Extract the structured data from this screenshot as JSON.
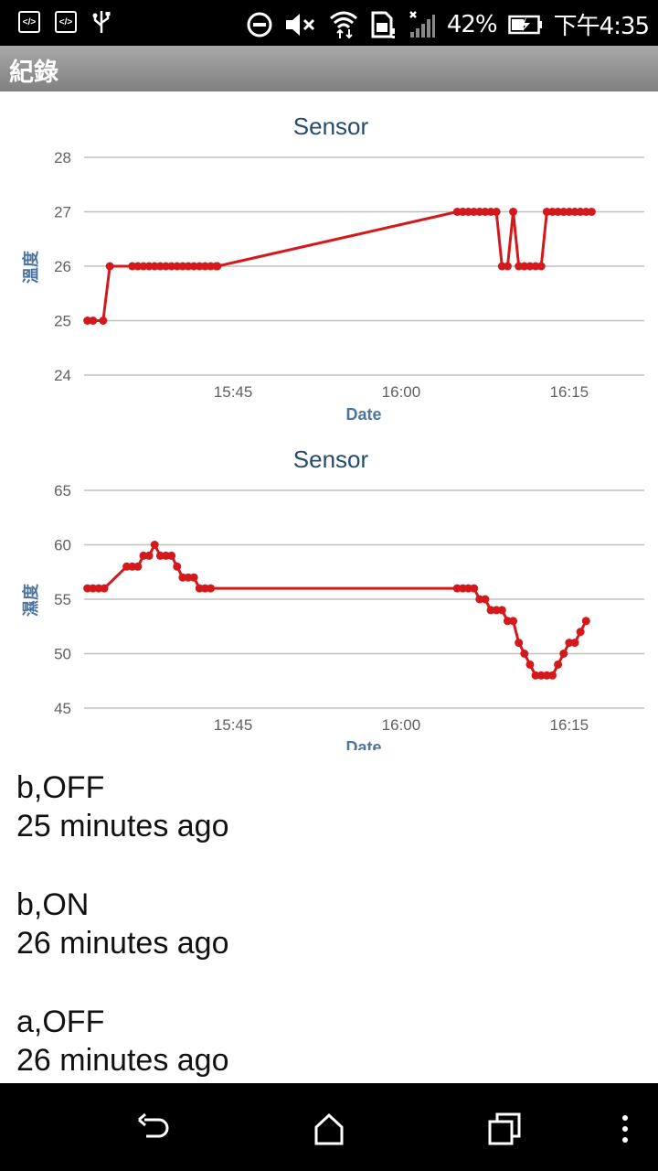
{
  "status_bar": {
    "battery_percent": "42%",
    "time": "下午4:35",
    "icons": [
      "debug-icon",
      "debug-icon",
      "usb-icon",
      "do-not-disturb-icon",
      "mute-icon",
      "wifi-icon",
      "sim-icon",
      "signal-icon",
      "battery-charging-icon"
    ]
  },
  "action_bar": {
    "title": "紀錄"
  },
  "charts": [
    {
      "title": "Sensor",
      "xlabel": "Date",
      "ylabel": "溫度",
      "x_ticks": [
        "15:45",
        "16:00",
        "16:15"
      ],
      "y_ticks": [
        "28",
        "27",
        "26",
        "25",
        "24"
      ]
    },
    {
      "title": "Sensor",
      "xlabel": "Date",
      "ylabel": "濕度",
      "x_ticks": [
        "15:45",
        "16:00",
        "16:15"
      ],
      "y_ticks": [
        "65",
        "60",
        "55",
        "50",
        "45"
      ]
    }
  ],
  "chart_data": [
    {
      "type": "line",
      "title": "Sensor",
      "xlabel": "Date",
      "ylabel": "溫度",
      "ylim": [
        24,
        28
      ],
      "x_unit": "minutes after 15:45",
      "series": [
        {
          "color": "#d3191c",
          "points": [
            [
              -13,
              25
            ],
            [
              -12.5,
              25
            ],
            [
              -11.6,
              25
            ],
            [
              -11,
              26
            ],
            [
              -9,
              26
            ],
            [
              -8.5,
              26
            ],
            [
              -8,
              26
            ],
            [
              -7.5,
              26
            ],
            [
              -7,
              26
            ],
            [
              -6.5,
              26
            ],
            [
              -6,
              26
            ],
            [
              -5.5,
              26
            ],
            [
              -5,
              26
            ],
            [
              -4.5,
              26
            ],
            [
              -4,
              26
            ],
            [
              -3.5,
              26
            ],
            [
              -3,
              26
            ],
            [
              -2.5,
              26
            ],
            [
              -2,
              26
            ],
            [
              -1.5,
              26
            ],
            [
              -1.4,
              26
            ],
            [
              20,
              27
            ],
            [
              20.5,
              27
            ],
            [
              21,
              27
            ],
            [
              21.5,
              27
            ],
            [
              22,
              27
            ],
            [
              22.5,
              27
            ],
            [
              23,
              27
            ],
            [
              23.5,
              27
            ],
            [
              24,
              26
            ],
            [
              24.5,
              26
            ],
            [
              25,
              27
            ],
            [
              25.5,
              26
            ],
            [
              26,
              26
            ],
            [
              26.5,
              26
            ],
            [
              27,
              26
            ],
            [
              27.5,
              26
            ],
            [
              28,
              27
            ],
            [
              28.5,
              27
            ],
            [
              29,
              27
            ],
            [
              29.5,
              27
            ],
            [
              30,
              27
            ],
            [
              30.5,
              27
            ],
            [
              31,
              27
            ],
            [
              31.5,
              27
            ],
            [
              32,
              27
            ]
          ]
        }
      ]
    },
    {
      "type": "line",
      "title": "Sensor",
      "xlabel": "Date",
      "ylabel": "濕度",
      "ylim": [
        45,
        65
      ],
      "x_unit": "minutes after 15:45",
      "series": [
        {
          "color": "#d3191c",
          "points": [
            [
              -13,
              56
            ],
            [
              -12.5,
              56
            ],
            [
              -12,
              56
            ],
            [
              -11.5,
              56
            ],
            [
              -9.5,
              58
            ],
            [
              -9,
              58
            ],
            [
              -8.5,
              58
            ],
            [
              -8,
              59
            ],
            [
              -7.5,
              59
            ],
            [
              -7,
              60
            ],
            [
              -6.5,
              59
            ],
            [
              -6,
              59
            ],
            [
              -5.5,
              59
            ],
            [
              -5,
              58
            ],
            [
              -4.5,
              57
            ],
            [
              -4,
              57
            ],
            [
              -3.5,
              57
            ],
            [
              -3,
              56
            ],
            [
              -2.5,
              56
            ],
            [
              -2,
              56
            ],
            [
              20,
              56
            ],
            [
              20.5,
              56
            ],
            [
              21,
              56
            ],
            [
              21.5,
              56
            ],
            [
              22,
              55
            ],
            [
              22.5,
              55
            ],
            [
              23,
              54
            ],
            [
              23.5,
              54
            ],
            [
              24,
              54
            ],
            [
              24.5,
              53
            ],
            [
              25,
              53
            ],
            [
              25.5,
              51
            ],
            [
              26,
              50
            ],
            [
              26.5,
              49
            ],
            [
              27,
              48
            ],
            [
              27.5,
              48
            ],
            [
              28,
              48
            ],
            [
              28.5,
              48
            ],
            [
              29,
              49
            ],
            [
              29.5,
              50
            ],
            [
              30,
              51
            ],
            [
              30.5,
              51
            ],
            [
              31,
              52
            ],
            [
              31.5,
              53
            ]
          ]
        }
      ]
    }
  ],
  "log_entries": [
    {
      "event": "b,OFF",
      "time": "25 minutes ago"
    },
    {
      "event": "b,ON",
      "time": "26 minutes ago"
    },
    {
      "event": "a,OFF",
      "time": "26 minutes ago"
    }
  ]
}
